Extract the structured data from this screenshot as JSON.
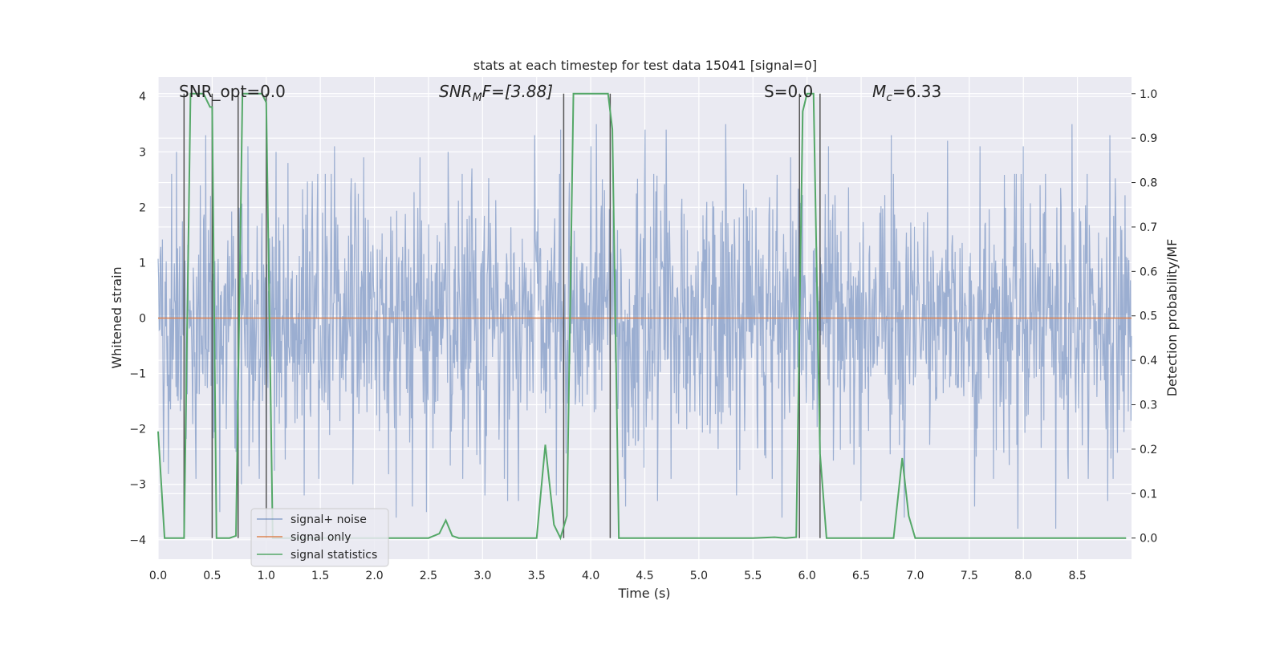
{
  "chart_data": {
    "type": "line",
    "title": "stats at each timestep for test data 15041 [signal=0]",
    "xlabel": "Time (s)",
    "ylabel": "Whitened strain",
    "y2label": "Detection probability/MF",
    "xlim": [
      0,
      9.0
    ],
    "ylim": [
      -4.35,
      4.35
    ],
    "y2lim": [
      -0.0475,
      1.0375
    ],
    "xticks": [
      "0.0",
      "0.5",
      "1.0",
      "1.5",
      "2.0",
      "2.5",
      "3.0",
      "3.5",
      "4.0",
      "4.5",
      "5.0",
      "5.5",
      "6.0",
      "6.5",
      "7.0",
      "7.5",
      "8.0",
      "8.5"
    ],
    "yticks": [
      "4",
      "3",
      "2",
      "1",
      "0",
      "−1",
      "−2",
      "−3",
      "−4"
    ],
    "y2ticks": [
      "1.0",
      "0.9",
      "0.8",
      "0.7",
      "0.6",
      "0.5",
      "0.4",
      "0.3",
      "0.2",
      "0.1",
      "0.0"
    ],
    "annotations": {
      "snr_opt": "SNR_opt=0.0",
      "snr_mf_base": "SNR",
      "snr_mf_sub": "M",
      "snr_mf_rest": "F=[3.88]",
      "s_stat": "S=0.0",
      "mc_base": "M",
      "mc_sub": "c",
      "mc_rest": "=6.33"
    },
    "legend": {
      "position": "lower-left",
      "items": [
        "signal+ noise",
        "signal only",
        "signal statistics"
      ]
    },
    "colors": {
      "noise": "#4c72b0",
      "signal_only": "#dd8452",
      "statistics": "#55a868",
      "markers": "#555555",
      "background": "#eaeaf2"
    },
    "series": [
      {
        "name": "signal+ noise",
        "description_values": "white noise, std ~1, range about -3.8 to 3.6",
        "peaks_up": [
          [
            0.05,
            3.1
          ],
          [
            0.17,
            3.0
          ],
          [
            0.44,
            3.3
          ],
          [
            0.83,
            3.1
          ],
          [
            1.09,
            3.0
          ],
          [
            1.2,
            2.8
          ],
          [
            1.63,
            3.1
          ],
          [
            1.9,
            2.9
          ],
          [
            2.2,
            3.3
          ],
          [
            2.42,
            2.9
          ],
          [
            2.68,
            3.0
          ],
          [
            2.9,
            2.7
          ],
          [
            3.48,
            3.3
          ],
          [
            3.72,
            3.4
          ],
          [
            4.0,
            3.1
          ],
          [
            4.05,
            3.5
          ],
          [
            4.5,
            3.4
          ],
          [
            4.7,
            3.4
          ],
          [
            5.25,
            3.5
          ],
          [
            5.85,
            2.9
          ],
          [
            6.2,
            3.1
          ],
          [
            6.78,
            3.3
          ],
          [
            7.3,
            3.2
          ],
          [
            7.6,
            3.1
          ],
          [
            8.0,
            3.1
          ],
          [
            8.45,
            3.5
          ],
          [
            8.8,
            3.3
          ]
        ],
        "peaks_down": [
          [
            0.05,
            -2.6
          ],
          [
            0.5,
            -3.3
          ],
          [
            0.57,
            -3.5
          ],
          [
            0.77,
            -3.0
          ],
          [
            1.0,
            -2.7
          ],
          [
            1.35,
            -3.2
          ],
          [
            1.8,
            -3.0
          ],
          [
            2.2,
            -3.6
          ],
          [
            2.35,
            -3.4
          ],
          [
            2.48,
            -3.5
          ],
          [
            3.02,
            -3.2
          ],
          [
            3.23,
            -3.3
          ],
          [
            3.33,
            -3.3
          ],
          [
            3.68,
            -3.2
          ],
          [
            4.32,
            -3.4
          ],
          [
            4.62,
            -3.3
          ],
          [
            5.35,
            -3.2
          ],
          [
            5.77,
            -3.6
          ],
          [
            6.5,
            -3.3
          ],
          [
            6.9,
            -3.6
          ],
          [
            7.55,
            -3.4
          ],
          [
            7.95,
            -3.8
          ],
          [
            8.3,
            -3.8
          ],
          [
            8.78,
            -3.3
          ]
        ]
      },
      {
        "name": "signal only",
        "x": [
          0,
          9.0
        ],
        "y": [
          0,
          0
        ]
      },
      {
        "name": "signal statistics",
        "axis": "right",
        "x": [
          0.0,
          0.06,
          0.12,
          0.18,
          0.24,
          0.3,
          0.36,
          0.42,
          0.48,
          0.5,
          0.54,
          0.6,
          0.66,
          0.72,
          0.78,
          0.84,
          0.9,
          0.96,
          1.0,
          1.06,
          1.12,
          1.5,
          2.0,
          2.5,
          2.6,
          2.66,
          2.72,
          2.78,
          3.0,
          3.3,
          3.5,
          3.58,
          3.66,
          3.72,
          3.78,
          3.84,
          3.9,
          4.0,
          4.1,
          4.16,
          4.2,
          4.26,
          4.5,
          5.0,
          5.5,
          5.7,
          5.8,
          5.9,
          5.96,
          6.0,
          6.06,
          6.12,
          6.18,
          6.26,
          6.5,
          6.8,
          6.88,
          6.94,
          7.0,
          7.5,
          8.0,
          8.5,
          8.95
        ],
        "y": [
          0.24,
          0.0,
          0.0,
          0.0,
          0.0,
          1.0,
          1.0,
          1.0,
          0.97,
          0.97,
          0.0,
          0.0,
          0.0,
          0.005,
          1.0,
          1.0,
          1.0,
          1.0,
          0.98,
          0.0,
          0.0,
          0.0,
          0.0,
          0.0,
          0.01,
          0.04,
          0.005,
          0.0,
          0.0,
          0.0,
          0.0,
          0.21,
          0.03,
          0.0,
          0.05,
          1.0,
          1.0,
          1.0,
          1.0,
          1.0,
          0.92,
          0.0,
          0.0,
          0.0,
          0.0,
          0.002,
          0.0,
          0.002,
          0.96,
          1.0,
          1.0,
          0.19,
          0.0,
          0.0,
          0.0,
          0.0,
          0.18,
          0.05,
          0.0,
          0.0,
          0.0,
          0.0,
          0.0
        ]
      }
    ],
    "vertical_markers": [
      0.24,
      0.5,
      0.74,
      1.0,
      3.75,
      4.18,
      5.93,
      6.12
    ]
  }
}
